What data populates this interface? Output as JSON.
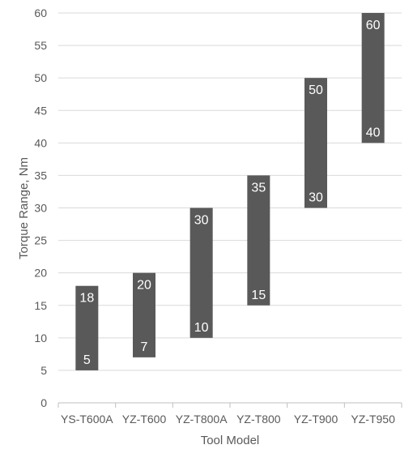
{
  "chart_data": {
    "type": "bar",
    "subtype": "floating-range",
    "title": "",
    "xlabel": "Tool Model",
    "ylabel": "Torque Range, Nm",
    "ylim": [
      0,
      60
    ],
    "ytick_step": 5,
    "yticks": [
      "0",
      "5",
      "10",
      "15",
      "20",
      "25",
      "30",
      "35",
      "40",
      "45",
      "50",
      "55",
      "60"
    ],
    "categories": [
      "YS-T600A",
      "YZ-T600",
      "YZ-T800A",
      "YZ-T800",
      "YZ-T900",
      "YZ-T950"
    ],
    "series": [
      {
        "min": [
          5,
          7,
          10,
          15,
          30,
          40
        ],
        "max": [
          18,
          20,
          30,
          35,
          50,
          60
        ]
      }
    ],
    "grid": true,
    "legend": "none",
    "colors": {
      "bar": "#595959",
      "bar_label": "#ffffff",
      "grid": "#d9d9d9",
      "axis": "#bfbfbf",
      "text": "#595959"
    }
  }
}
